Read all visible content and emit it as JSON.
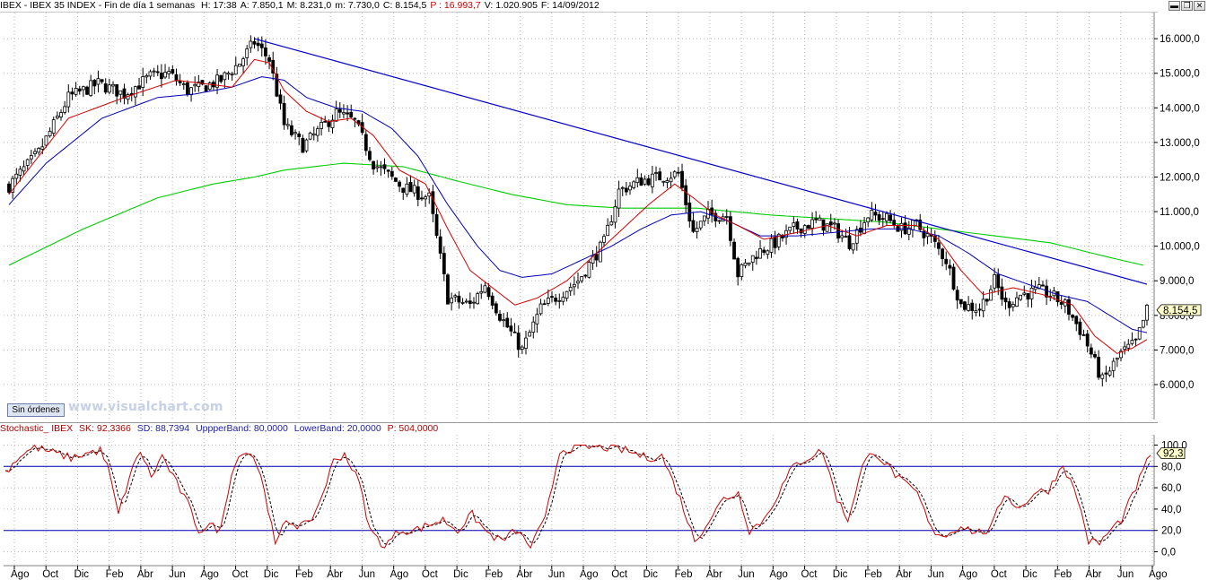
{
  "header": {
    "title": "IBEX - IBEX 35 INDEX - Fin de día 1 semanas",
    "fields": [
      {
        "label": "H: 17:38",
        "red": false
      },
      {
        "label": "A: 7.850,1",
        "red": false
      },
      {
        "label": "M: 8.231,0",
        "red": false
      },
      {
        "label": "m: 7.730,0",
        "red": false
      },
      {
        "label": "C: 8.154,5",
        "red": false
      },
      {
        "label": "P : 16.993,7",
        "red": true
      },
      {
        "label": "V: 1.020.905",
        "red": false
      },
      {
        "label": "F: 14/09/2012",
        "red": false
      }
    ]
  },
  "window_buttons": {
    "minimize": "▬",
    "restore": "❐",
    "close": "✕"
  },
  "orders_button": "Sin órdenes",
  "watermark": "www.visualchart.com",
  "oscillator_header": {
    "name": "Stochastic_ IBEX",
    "sk": "SK: 92,3366",
    "sd": "SD: 88,7394",
    "upper": "UppperBand: 80,0000",
    "lower": "LowerBand: 20,0000",
    "period": "P: 504,0000"
  },
  "colors": {
    "candle": "#000000",
    "ma_short": "#d40000",
    "ma_mid": "#0000b4",
    "ma_long": "#00cc00",
    "trendline": "#0000c8",
    "osc_sk": "#cc0000",
    "osc_sd": "#000000",
    "osc_bands": "#0000b4"
  },
  "chart_data": [
    {
      "type": "candlestick",
      "title": "IBEX - IBEX 35 INDEX",
      "ylim": [
        5300,
        16600
      ],
      "y_ticks": [
        "16.000,0",
        "15.000,0",
        "14.000,0",
        "13.000,0",
        "12.000,0",
        "11.000,0",
        "10.000,0",
        "9.000,0",
        "8.000,0",
        "7.000,0",
        "6.000,0"
      ],
      "y_tick_values": [
        16000,
        15000,
        14000,
        13000,
        12000,
        11000,
        10000,
        9000,
        8000,
        7000,
        6000
      ],
      "last_value_label": "8.154,5",
      "last_value": 8154.5,
      "close_anchors": [
        [
          0,
          11750
        ],
        [
          8,
          12700
        ],
        [
          16,
          14300
        ],
        [
          24,
          14700
        ],
        [
          31,
          14400
        ],
        [
          38,
          14900
        ],
        [
          43,
          15000
        ],
        [
          48,
          14500
        ],
        [
          52,
          14600
        ],
        [
          57,
          14800
        ],
        [
          62,
          15300
        ],
        [
          66,
          15900
        ],
        [
          70,
          15400
        ],
        [
          74,
          13500
        ],
        [
          79,
          12900
        ],
        [
          83,
          13300
        ],
        [
          88,
          13850
        ],
        [
          93,
          13600
        ],
        [
          98,
          12400
        ],
        [
          106,
          11700
        ],
        [
          113,
          11400
        ],
        [
          118,
          8500
        ],
        [
          124,
          8300
        ],
        [
          128,
          8900
        ],
        [
          132,
          8000
        ],
        [
          138,
          7000
        ],
        [
          143,
          8200
        ],
        [
          148,
          8600
        ],
        [
          153,
          9000
        ],
        [
          160,
          10100
        ],
        [
          164,
          11600
        ],
        [
          170,
          11900
        ],
        [
          175,
          12000
        ],
        [
          180,
          12100
        ],
        [
          184,
          10400
        ],
        [
          188,
          10900
        ],
        [
          193,
          10900
        ],
        [
          196,
          9200
        ],
        [
          201,
          9800
        ],
        [
          206,
          10100
        ],
        [
          211,
          10500
        ],
        [
          217,
          10700
        ],
        [
          222,
          10500
        ],
        [
          226,
          10100
        ],
        [
          231,
          10900
        ],
        [
          236,
          10800
        ],
        [
          240,
          10500
        ],
        [
          244,
          10600
        ],
        [
          248,
          10200
        ],
        [
          252,
          9600
        ],
        [
          256,
          8300
        ],
        [
          261,
          8200
        ],
        [
          265,
          9000
        ],
        [
          268,
          8300
        ],
        [
          272,
          8600
        ],
        [
          277,
          8700
        ],
        [
          280,
          8600
        ],
        [
          284,
          8300
        ],
        [
          289,
          7400
        ],
        [
          294,
          6100
        ],
        [
          299,
          6900
        ],
        [
          303,
          7200
        ],
        [
          306,
          8154
        ]
      ],
      "ma_short": [
        [
          0,
          11500
        ],
        [
          16,
          13700
        ],
        [
          31,
          14300
        ],
        [
          45,
          14800
        ],
        [
          60,
          14600
        ],
        [
          66,
          15400
        ],
        [
          70,
          15300
        ],
        [
          74,
          14500
        ],
        [
          80,
          13900
        ],
        [
          86,
          13600
        ],
        [
          92,
          13700
        ],
        [
          98,
          13200
        ],
        [
          105,
          12200
        ],
        [
          112,
          11800
        ],
        [
          118,
          10500
        ],
        [
          124,
          9300
        ],
        [
          130,
          8800
        ],
        [
          136,
          8300
        ],
        [
          142,
          8500
        ],
        [
          150,
          9000
        ],
        [
          158,
          9800
        ],
        [
          165,
          10500
        ],
        [
          172,
          11200
        ],
        [
          179,
          11800
        ],
        [
          184,
          11400
        ],
        [
          190,
          10900
        ],
        [
          196,
          10600
        ],
        [
          203,
          10200
        ],
        [
          212,
          10400
        ],
        [
          220,
          10600
        ],
        [
          228,
          10300
        ],
        [
          236,
          10600
        ],
        [
          244,
          10600
        ],
        [
          250,
          10200
        ],
        [
          256,
          9300
        ],
        [
          262,
          8600
        ],
        [
          270,
          8800
        ],
        [
          278,
          8600
        ],
        [
          286,
          8300
        ],
        [
          292,
          7400
        ],
        [
          298,
          6900
        ],
        [
          302,
          7050
        ],
        [
          306,
          7300
        ]
      ],
      "ma_mid": [
        [
          0,
          11200
        ],
        [
          10,
          12400
        ],
        [
          25,
          13700
        ],
        [
          40,
          14300
        ],
        [
          50,
          14400
        ],
        [
          60,
          14600
        ],
        [
          68,
          14900
        ],
        [
          74,
          14800
        ],
        [
          80,
          14300
        ],
        [
          88,
          14000
        ],
        [
          95,
          13900
        ],
        [
          103,
          13400
        ],
        [
          110,
          12600
        ],
        [
          118,
          11200
        ],
        [
          126,
          10000
        ],
        [
          132,
          9300
        ],
        [
          138,
          9100
        ],
        [
          146,
          9200
        ],
        [
          154,
          9600
        ],
        [
          162,
          10000
        ],
        [
          170,
          10500
        ],
        [
          178,
          10900
        ],
        [
          186,
          11000
        ],
        [
          194,
          10700
        ],
        [
          202,
          10300
        ],
        [
          212,
          10300
        ],
        [
          222,
          10400
        ],
        [
          232,
          10500
        ],
        [
          242,
          10500
        ],
        [
          250,
          10300
        ],
        [
          258,
          9800
        ],
        [
          266,
          9200
        ],
        [
          274,
          8900
        ],
        [
          282,
          8600
        ],
        [
          290,
          8400
        ],
        [
          296,
          8000
        ],
        [
          302,
          7600
        ],
        [
          306,
          7500
        ]
      ],
      "ma_long": [
        [
          0,
          9450
        ],
        [
          20,
          10500
        ],
        [
          40,
          11400
        ],
        [
          55,
          11800
        ],
        [
          66,
          12000
        ],
        [
          74,
          12200
        ],
        [
          90,
          12400
        ],
        [
          106,
          12300
        ],
        [
          120,
          11900
        ],
        [
          135,
          11500
        ],
        [
          150,
          11200
        ],
        [
          165,
          11100
        ],
        [
          185,
          11100
        ],
        [
          205,
          10900
        ],
        [
          220,
          10800
        ],
        [
          235,
          10700
        ],
        [
          250,
          10500
        ],
        [
          265,
          10300
        ],
        [
          280,
          10100
        ],
        [
          295,
          9700
        ],
        [
          305,
          9450
        ]
      ],
      "trendline": [
        [
          66,
          16000
        ],
        [
          306,
          8900
        ]
      ]
    },
    {
      "type": "line",
      "title": "Stochastic_ IBEX",
      "ylim": [
        -8,
        108
      ],
      "y_ticks": [
        "100,0",
        "80,0",
        "60,0",
        "40,0",
        "20,0",
        "0,0"
      ],
      "y_tick_values": [
        100,
        80,
        60,
        40,
        20,
        0
      ],
      "bands": [
        80,
        20
      ],
      "last_value_label": "92,3",
      "sk_last": 92.3366,
      "sd_last": 88.7394,
      "sk_anchors": [
        [
          0,
          75
        ],
        [
          4,
          90
        ],
        [
          8,
          98
        ],
        [
          14,
          92
        ],
        [
          18,
          88
        ],
        [
          22,
          92
        ],
        [
          26,
          95
        ],
        [
          28,
          80
        ],
        [
          31,
          35
        ],
        [
          34,
          70
        ],
        [
          37,
          95
        ],
        [
          40,
          70
        ],
        [
          43,
          90
        ],
        [
          46,
          70
        ],
        [
          50,
          45
        ],
        [
          53,
          20
        ],
        [
          56,
          25
        ],
        [
          59,
          20
        ],
        [
          62,
          75
        ],
        [
          65,
          95
        ],
        [
          68,
          90
        ],
        [
          71,
          60
        ],
        [
          74,
          5
        ],
        [
          77,
          30
        ],
        [
          80,
          25
        ],
        [
          83,
          25
        ],
        [
          86,
          45
        ],
        [
          90,
          85
        ],
        [
          93,
          92
        ],
        [
          97,
          65
        ],
        [
          100,
          20
        ],
        [
          104,
          5
        ],
        [
          108,
          20
        ],
        [
          112,
          20
        ],
        [
          116,
          25
        ],
        [
          120,
          30
        ],
        [
          124,
          20
        ],
        [
          128,
          35
        ],
        [
          132,
          18
        ],
        [
          136,
          10
        ],
        [
          140,
          20
        ],
        [
          144,
          5
        ],
        [
          148,
          30
        ],
        [
          152,
          95
        ],
        [
          158,
          98
        ],
        [
          164,
          98
        ],
        [
          170,
          95
        ],
        [
          176,
          88
        ],
        [
          180,
          90
        ],
        [
          185,
          50
        ],
        [
          189,
          10
        ],
        [
          193,
          30
        ],
        [
          197,
          50
        ],
        [
          201,
          55
        ],
        [
          204,
          20
        ],
        [
          208,
          30
        ],
        [
          212,
          55
        ],
        [
          216,
          80
        ],
        [
          220,
          88
        ],
        [
          224,
          95
        ],
        [
          228,
          50
        ],
        [
          231,
          30
        ],
        [
          235,
          80
        ],
        [
          238,
          95
        ],
        [
          242,
          80
        ],
        [
          246,
          65
        ],
        [
          250,
          55
        ],
        [
          254,
          20
        ],
        [
          258,
          15
        ],
        [
          262,
          25
        ],
        [
          266,
          18
        ],
        [
          270,
          20
        ],
        [
          274,
          55
        ],
        [
          278,
          40
        ],
        [
          282,
          55
        ],
        [
          286,
          58
        ],
        [
          290,
          82
        ],
        [
          294,
          50
        ],
        [
          297,
          10
        ],
        [
          300,
          8
        ],
        [
          303,
          20
        ],
        [
          306,
          30
        ],
        [
          310,
          60
        ],
        [
          314,
          92
        ]
      ],
      "x_labels": [
        "Ago",
        "Oct",
        "Dic",
        "Feb",
        "Abr",
        "Jun",
        "Ago",
        "Oct",
        "Dic",
        "Feb",
        "Abr",
        "Jun",
        "Ago",
        "Oct",
        "Dic",
        "Feb",
        "Abr",
        "Jun",
        "Ago",
        "Oct",
        "Dic",
        "Feb",
        "Abr",
        "Jun",
        "Ago",
        "Oct",
        "Dic",
        "Feb",
        "Abr",
        "Jun",
        "Ago",
        "Oct",
        "Dic",
        "Feb",
        "Abr",
        "Jun",
        "Ago"
      ],
      "x_label_positions_idx": [
        0,
        9,
        17,
        26,
        34,
        43,
        52,
        61,
        69,
        78,
        86,
        95,
        104,
        113,
        121,
        130,
        139,
        147,
        156,
        165,
        173,
        182,
        191,
        199,
        208,
        217,
        225,
        234,
        243,
        251,
        260,
        269,
        277,
        286,
        295,
        303,
        312
      ]
    }
  ]
}
